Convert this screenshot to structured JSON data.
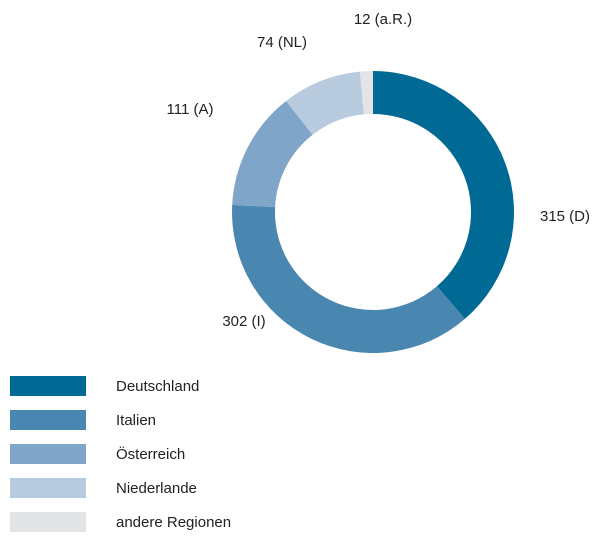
{
  "chart_data": {
    "type": "donut",
    "categories": [
      "Deutschland",
      "Italien",
      "Österreich",
      "Niederlande",
      "andere Regionen"
    ],
    "values": [
      315,
      302,
      111,
      74,
      12
    ],
    "value_labels": [
      "315 (D)",
      "302 (I)",
      "111 (A)",
      "74 (NL)",
      "12 (a.R.)"
    ],
    "colors": [
      "#006a94",
      "#4a87b0",
      "#7fa6c8",
      "#b8cbdf",
      "#e2e4e6"
    ],
    "legend": "bottom-left"
  }
}
